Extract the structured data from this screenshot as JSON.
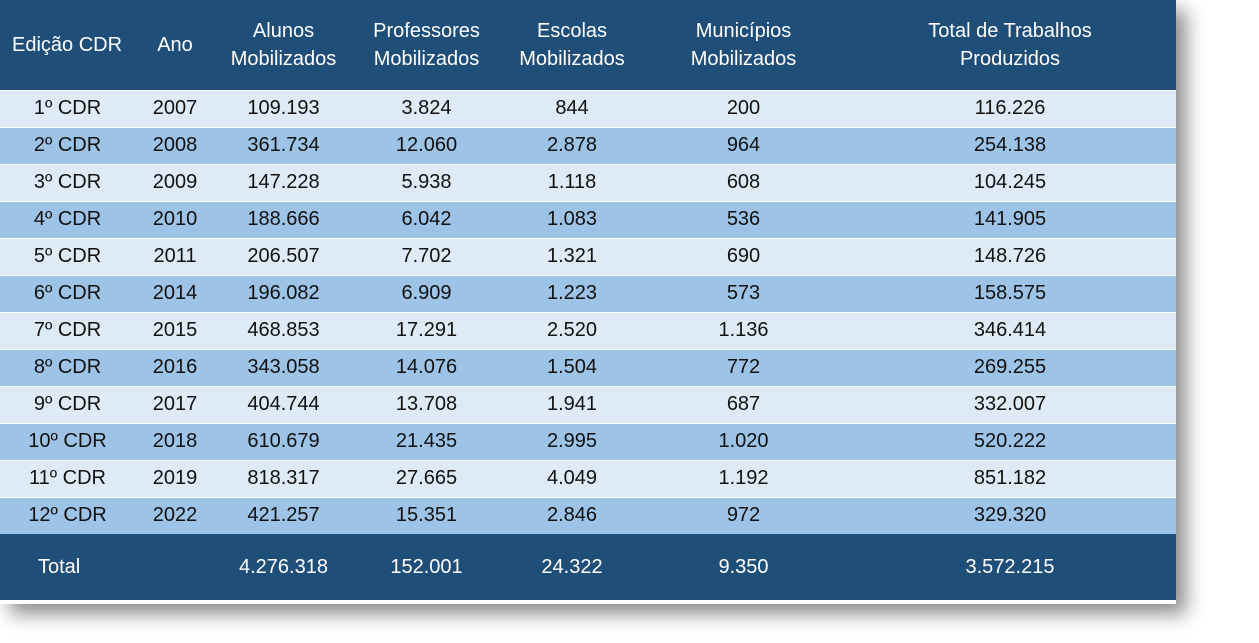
{
  "headers": [
    {
      "l1": "Edição CDR",
      "l2": ""
    },
    {
      "l1": "Ano",
      "l2": ""
    },
    {
      "l1": "Alunos",
      "l2": "Mobilizados"
    },
    {
      "l1": "Professores",
      "l2": "Mobilizados"
    },
    {
      "l1": "Escolas",
      "l2": "Mobilizados"
    },
    {
      "l1": "Municípios",
      "l2": "Mobilizados"
    },
    {
      "l1": "Total de Trabalhos",
      "l2": "Produzidos"
    }
  ],
  "rows": [
    [
      "1º CDR",
      "2007",
      "109.193",
      "3.824",
      "844",
      "200",
      "116.226"
    ],
    [
      "2º CDR",
      "2008",
      "361.734",
      "12.060",
      "2.878",
      "964",
      "254.138"
    ],
    [
      "3º CDR",
      "2009",
      "147.228",
      "5.938",
      "1.118",
      "608",
      "104.245"
    ],
    [
      "4º CDR",
      "2010",
      "188.666",
      "6.042",
      "1.083",
      "536",
      "141.905"
    ],
    [
      "5º CDR",
      "2011",
      "206.507",
      "7.702",
      "1.321",
      "690",
      "148.726"
    ],
    [
      "6º CDR",
      "2014",
      "196.082",
      "6.909",
      "1.223",
      "573",
      "158.575"
    ],
    [
      "7º CDR",
      "2015",
      "468.853",
      "17.291",
      "2.520",
      "1.136",
      "346.414"
    ],
    [
      "8º CDR",
      "2016",
      "343.058",
      "14.076",
      "1.504",
      "772",
      "269.255"
    ],
    [
      "9º CDR",
      "2017",
      "404.744",
      "13.708",
      "1.941",
      "687",
      "332.007"
    ],
    [
      "10º CDR",
      "2018",
      "610.679",
      "21.435",
      "2.995",
      "1.020",
      "520.222"
    ],
    [
      "11º CDR",
      "2019",
      "818.317",
      "27.665",
      "4.049",
      "1.192",
      "851.182"
    ],
    [
      "12º CDR",
      "2022",
      "421.257",
      "15.351",
      "2.846",
      "972",
      "329.320"
    ]
  ],
  "total": [
    "Total",
    "",
    "4.276.318",
    "152.001",
    "24.322",
    "9.350",
    "3.572.215"
  ],
  "colors": {
    "header_bg": "#1f4e79",
    "row_light": "#deebf7",
    "row_dark": "#9dc3e6",
    "header_text": "#ffffff"
  }
}
